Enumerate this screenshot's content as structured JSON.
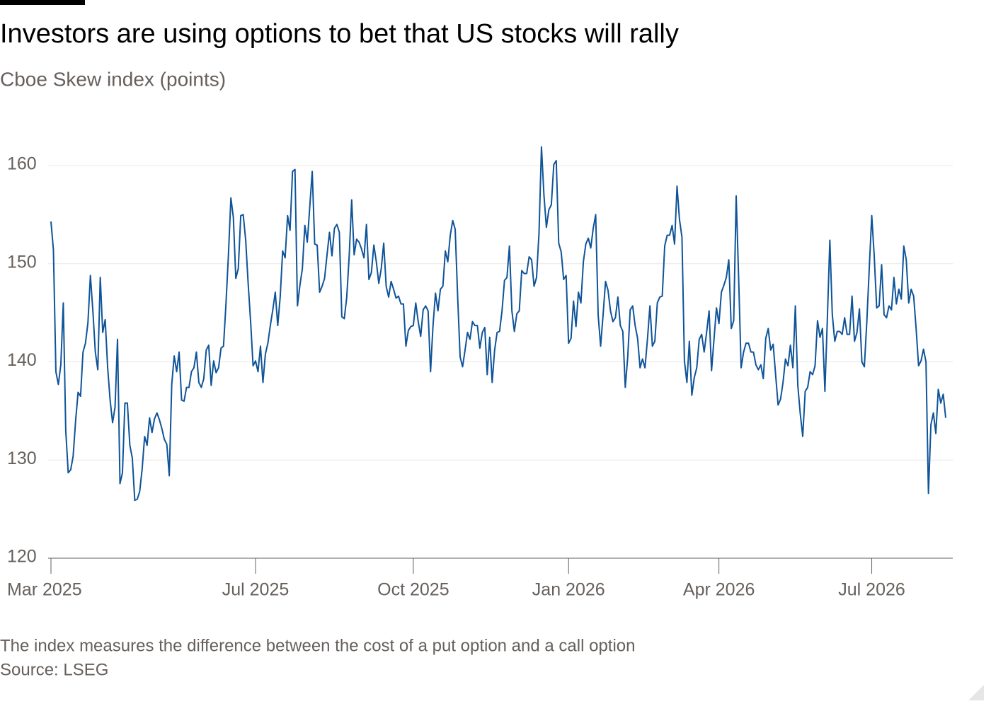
{
  "chart_data": {
    "type": "line",
    "title": "Investors are using options to bet that US stocks will rally",
    "subtitle": "Cboe Skew index (points)",
    "note": "The index measures the difference between the cost of a put option and a call option",
    "source": "Source: LSEG",
    "color": "#0f5499",
    "grid": true,
    "ylim": [
      120,
      165
    ],
    "yticks": [
      120,
      130,
      140,
      150,
      160
    ],
    "categories": [
      "Mar 2025",
      null,
      null,
      null,
      null,
      null,
      null,
      null,
      null,
      null,
      null,
      null,
      null,
      null,
      null,
      null,
      null,
      null,
      null,
      null,
      null,
      null,
      null,
      null,
      null,
      null,
      null,
      null,
      null,
      null,
      null,
      null,
      null,
      null,
      null,
      null,
      null,
      null,
      null,
      null,
      null,
      null,
      null,
      null,
      null,
      null,
      null,
      null,
      null,
      null,
      null,
      null,
      null,
      null,
      null,
      null,
      null,
      null,
      null,
      null,
      null,
      null,
      null,
      null,
      null,
      null,
      null,
      null,
      null,
      null,
      null,
      null,
      null,
      null,
      null,
      null,
      null,
      null,
      null,
      null,
      null,
      null,
      null,
      "Jul 2025",
      null,
      null,
      null,
      null,
      null,
      null,
      null,
      null,
      null,
      null,
      null,
      null,
      null,
      null,
      null,
      null,
      null,
      null,
      null,
      null,
      null,
      null,
      null,
      null,
      null,
      null,
      null,
      null,
      null,
      null,
      null,
      null,
      null,
      null,
      null,
      null,
      null,
      null,
      null,
      null,
      null,
      null,
      null,
      null,
      null,
      null,
      null,
      null,
      null,
      null,
      null,
      null,
      null,
      null,
      null,
      null,
      null,
      null,
      null,
      null,
      null,
      null,
      null,
      "Oct 2025",
      null,
      null,
      null,
      null,
      null,
      null,
      null,
      null,
      null,
      null,
      null,
      null,
      null,
      null,
      null,
      null,
      null,
      null,
      null,
      null,
      null,
      null,
      null,
      null,
      null,
      null,
      null,
      null,
      null,
      null,
      null,
      null,
      null,
      null,
      null,
      null,
      null,
      null,
      null,
      null,
      null,
      null,
      null,
      null,
      null,
      null,
      null,
      null,
      null,
      null,
      null,
      null,
      null,
      null,
      null,
      null,
      null,
      null,
      null,
      null,
      null,
      null,
      "Jan 2026",
      null,
      null,
      null,
      null,
      null,
      null,
      null,
      null,
      null,
      null,
      null,
      null,
      null,
      null,
      null,
      null,
      null,
      null,
      null,
      null,
      null,
      null,
      null,
      null,
      null,
      null,
      null,
      null,
      null,
      null,
      null,
      null,
      null,
      null,
      null,
      null,
      null,
      null,
      null,
      null,
      null,
      null,
      null,
      null,
      null,
      null,
      null,
      null,
      null,
      null,
      null,
      null,
      null,
      null,
      null,
      null,
      null,
      null,
      null,
      null,
      "Apr 2026",
      null,
      null,
      null,
      null,
      null,
      null,
      null,
      null,
      null,
      null,
      null,
      null,
      null,
      null,
      null,
      null,
      null,
      null,
      null,
      null,
      null,
      null,
      null,
      null,
      null,
      null,
      null,
      null,
      null,
      null,
      null,
      null,
      null,
      null,
      null,
      null,
      null,
      null,
      null,
      null,
      null,
      null,
      null,
      null,
      null,
      null,
      null,
      null,
      null,
      null,
      null,
      null,
      null,
      null,
      null,
      null,
      null,
      null,
      null,
      null,
      null,
      "Jul 2026",
      null,
      null,
      null,
      null,
      null,
      null,
      null,
      null,
      null,
      null,
      null,
      null,
      null,
      null,
      null,
      null,
      null,
      null,
      null,
      null,
      null,
      null,
      null,
      null,
      null,
      null,
      null,
      null,
      null,
      null
    ],
    "values": [
      154.3,
      151.4,
      139,
      137.7,
      139.7,
      146,
      133,
      128.7,
      129,
      130.4,
      134,
      136.9,
      136.5,
      141,
      141.9,
      144,
      148.8,
      145.2,
      141,
      139.2,
      148.6,
      143,
      144.3,
      139.4,
      136.1,
      133.8,
      135.4,
      142.3,
      127.6,
      128.7,
      135.8,
      135.8,
      131.5,
      130.2,
      125.9,
      126,
      126.8,
      129.1,
      132.4,
      131.5,
      134.3,
      132.8,
      134.2,
      134.8,
      134.1,
      133.2,
      132.1,
      131.6,
      128.4,
      137.7,
      140.6,
      139,
      141,
      136.1,
      136,
      137.4,
      137.4,
      139,
      139.4,
      141,
      137.9,
      137.4,
      138.3,
      141.2,
      141.7,
      137.6,
      140.1,
      138.9,
      139.4,
      141.4,
      141.6,
      145.9,
      150.9,
      156.7,
      154.7,
      148.5,
      149.5,
      154.9,
      155,
      152.4,
      148,
      144.1,
      139.6,
      140.1,
      139,
      141.6,
      137.9,
      140.8,
      141.9,
      143.7,
      145.3,
      147.1,
      143.7,
      146.6,
      151.3,
      150.6,
      154.9,
      153.4,
      159.4,
      159.6,
      145.7,
      147.8,
      149.5,
      153.9,
      152.2,
      155.8,
      159.4,
      152,
      151.9,
      147.1,
      147.7,
      148.5,
      150.9,
      153.2,
      150.8,
      153.6,
      154,
      153.2,
      144.6,
      144.4,
      146.6,
      150.8,
      156.5,
      150.9,
      152.5,
      152.2,
      151.5,
      150.6,
      154,
      148.4,
      149.1,
      151.9,
      150.2,
      148,
      149.5,
      152.1,
      147.7,
      146.6,
      148.2,
      147.4,
      146.5,
      146.7,
      145.9,
      145.9,
      141.6,
      143.2,
      143.6,
      143.7,
      146,
      144.1,
      142.6,
      145.3,
      145.7,
      145.2,
      139,
      143.7,
      147,
      145.2,
      147.4,
      147.7,
      151.3,
      150.2,
      152.9,
      154.4,
      153.5,
      146.6,
      140.5,
      139.5,
      141.2,
      143,
      142.3,
      144.1,
      143.7,
      143.7,
      141.4,
      143,
      143.5,
      138.7,
      142.5,
      137.9,
      141.2,
      143,
      143.1,
      145.2,
      148.3,
      148.6,
      151.8,
      145.2,
      143.1,
      144.9,
      145.2,
      149.3,
      149,
      149,
      150.7,
      150.4,
      147.7,
      148.6,
      153.1,
      161.9,
      157,
      153.7,
      155.5,
      156,
      160.1,
      160.5,
      152.1,
      151.2,
      148.4,
      148.8,
      141.9,
      142.4,
      146.2,
      143.6,
      147.1,
      146,
      150.2,
      152,
      152.6,
      151.6,
      153.6,
      155,
      144.8,
      141.6,
      144.8,
      148.2,
      147.3,
      145.2,
      144.1,
      144.5,
      146.6,
      143.7,
      143.1,
      137.4,
      140.5,
      145.3,
      145.7,
      143.7,
      142.4,
      139.4,
      140.3,
      139.4,
      142.3,
      145.7,
      141.6,
      142.1,
      146,
      146.6,
      146.7,
      151.8,
      152.9,
      152.9,
      153.9,
      152,
      157.9,
      154.5,
      152.7,
      140.1,
      137.9,
      142.1,
      136.6,
      138.4,
      139.4,
      142.3,
      142.8,
      141,
      143,
      145.2,
      139.1,
      142.3,
      145.5,
      143.9,
      147.1,
      147.8,
      148.6,
      150.4,
      143.4,
      144.2,
      156.9,
      148.5,
      139.4,
      141,
      141.9,
      141.9,
      141,
      141,
      139.7,
      139.2,
      139.7,
      138.3,
      142.4,
      143.4,
      141.2,
      141.8,
      138.7,
      135.6,
      136.2,
      137.9,
      140.3,
      139.6,
      141.7,
      139.4,
      145.7,
      137.6,
      134.7,
      132.4,
      137,
      137.4,
      139,
      138.7,
      139.6,
      144.2,
      142.5,
      143.4,
      137,
      144.5,
      152.4,
      144.8,
      142.1,
      143.1,
      143.1,
      142.8,
      144.5,
      142.8,
      142.8,
      146.7,
      142.1,
      143,
      145.4,
      140,
      139.5,
      144.1,
      149.6,
      154.9,
      150.8,
      145.5,
      145.7,
      149.9,
      144.8,
      144.5,
      145.7,
      145.3,
      148.6,
      145.9,
      147.4,
      146.4,
      151.8,
      150.4,
      146,
      147.4,
      146.7,
      143.4,
      139.6,
      140.1,
      141.3,
      140,
      126.6,
      133.6,
      134.8,
      132.7,
      137.2,
      135.8,
      136.7,
      134.3
    ]
  }
}
